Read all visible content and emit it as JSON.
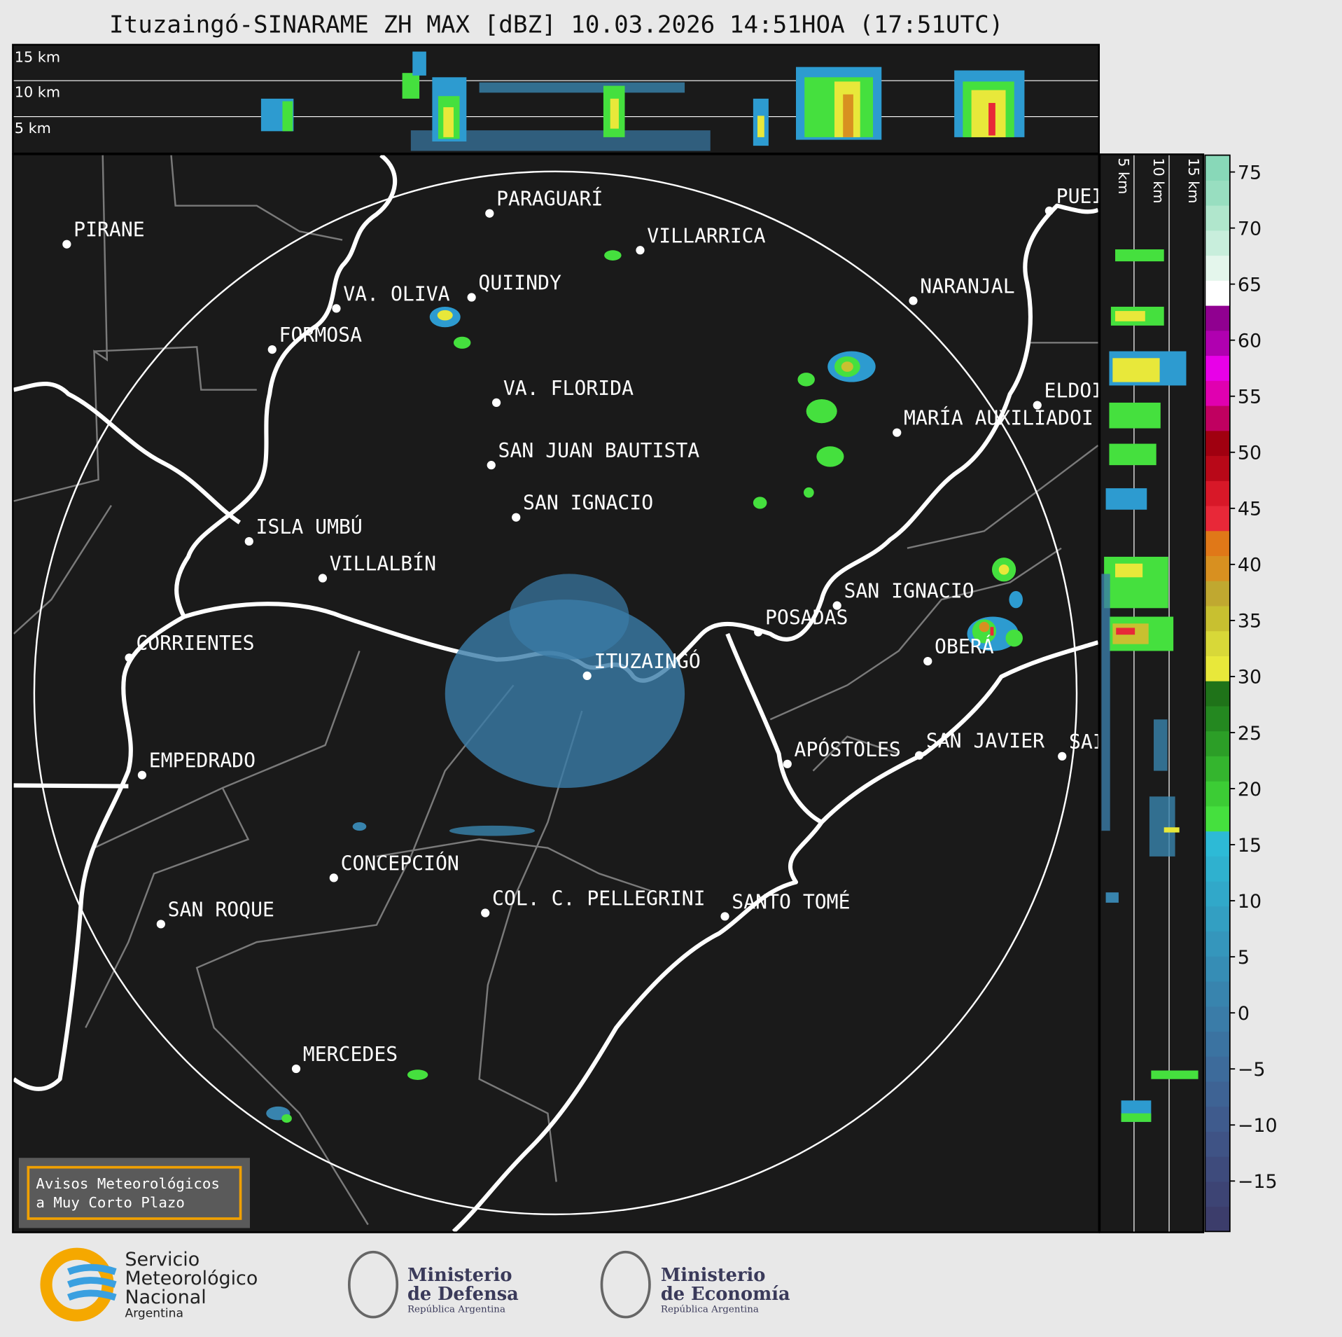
{
  "title": "Ituzaingó-SINARAME ZH MAX [dBZ] 10.03.2026 14:51HOA (17:51UTC)",
  "top_panel": {
    "labels": [
      "15 km",
      "10 km",
      "5 km"
    ]
  },
  "side_panel": {
    "labels": [
      "5 km",
      "10 km",
      "15 km"
    ]
  },
  "map": {
    "cities": [
      "PIRANE",
      "PARAGUARÍ",
      "VILLARRICA",
      "QUIINDY",
      "VA. OLIVA",
      "FORMOSA",
      "NARANJAL",
      "VA. FLORIDA",
      "ELDOI",
      "MARÍA AUXILIADOI",
      "SAN JUAN BAUTISTA",
      "SAN IGNACIO",
      "ISLA UMBÚ",
      "VILLALBÍN",
      "SAN IGNACIO",
      "POSADAS",
      "ITUZAINGÓ",
      "OBERÁ",
      "CORRIENTES",
      "EMPEDRADO",
      "APÓSTOLES",
      "SAN JAVIER",
      "SAI",
      "CONCEPCIÓN",
      "COL. C. PELLEGRINI",
      "SANTO TOMÉ",
      "SAN ROQUE",
      "MERCEDES",
      "PUEI"
    ],
    "notice": [
      "Avisos Meteorológicos",
      "a Muy Corto Plazo"
    ]
  },
  "colorbar": {
    "lim": [
      -19.5,
      76.5
    ],
    "ticks": [
      {
        "value": -15,
        "label": "−15"
      },
      {
        "value": -10,
        "label": "−10"
      },
      {
        "value": -5,
        "label": "−5"
      },
      0,
      5,
      10,
      15,
      20,
      25,
      30,
      35,
      40,
      45,
      50,
      55,
      60,
      65,
      70,
      75
    ],
    "colors": [
      "#3c3d6b",
      "#3d4474",
      "#3e4b7c",
      "#3f5385",
      "#3f5b8d",
      "#3e6394",
      "#3d6b9b",
      "#3b73a1",
      "#3a7ca8",
      "#3884ae",
      "#368db5",
      "#3596bc",
      "#339fc2",
      "#31a8c9",
      "#2fb1cf",
      "#2dbad6",
      "#45e03e",
      "#3ccc35",
      "#34b52e",
      "#2c9e27",
      "#248820",
      "#1f7319",
      "#e8e83a",
      "#d8d838",
      "#c8c030",
      "#c0a830",
      "#d89020",
      "#e07818",
      "#e82838",
      "#d81828",
      "#b80818",
      "#a00010",
      "#c00060",
      "#e000b0",
      "#e800e8",
      "#b000b0",
      "#900090",
      "#ffffff",
      "#e4f6ec",
      "#c8eedc",
      "#b0e6cc",
      "#98dec0",
      "#88d8b8"
    ]
  },
  "logos": {
    "smn": [
      "Servicio",
      "Meteorológico",
      "Nacional",
      "Argentina"
    ],
    "defensa": [
      "Ministerio",
      "de Defensa",
      "República Argentina"
    ],
    "economia": [
      "Ministerio",
      "de Economía",
      "República Argentina"
    ]
  }
}
